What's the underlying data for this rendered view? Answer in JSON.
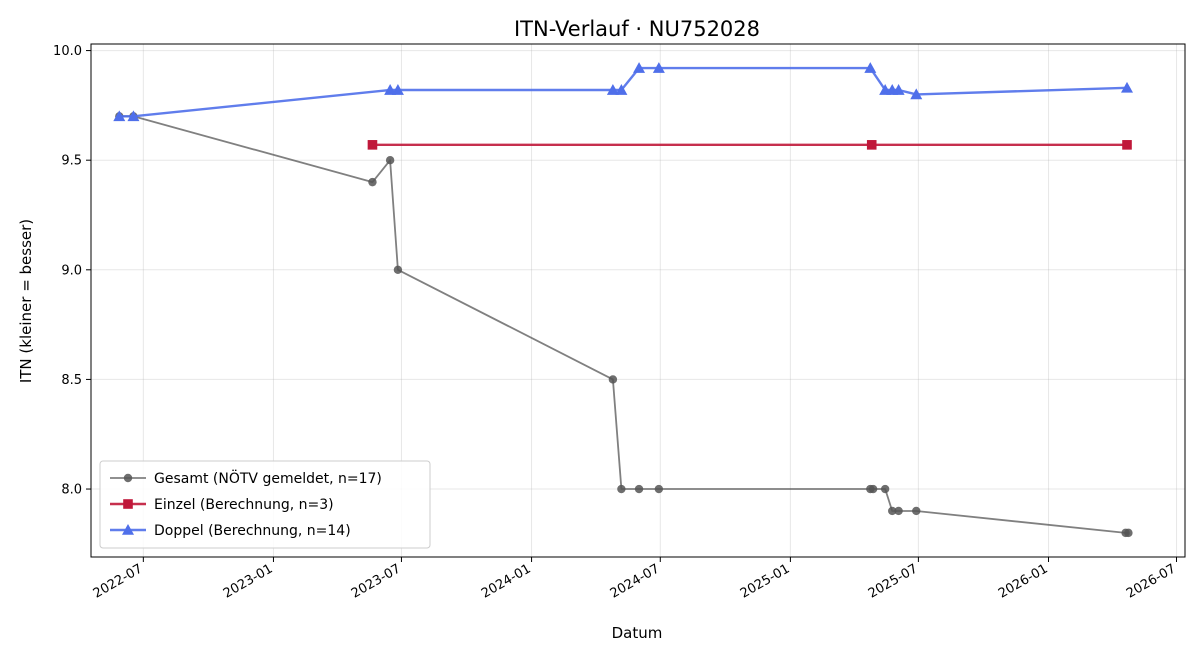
{
  "chart_data": {
    "type": "line",
    "title": "ITN-Verlauf · NU752028",
    "xlabel": "Datum",
    "ylabel": "ITN  (kleiner = besser)",
    "x_range": [
      "2022-04-18",
      "2026-07-13"
    ],
    "ylim": [
      7.69,
      10.03
    ],
    "x_ticks": [
      {
        "date": "2022-07-01",
        "label": "2022-07"
      },
      {
        "date": "2023-01-01",
        "label": "2023-01"
      },
      {
        "date": "2023-07-01",
        "label": "2023-07"
      },
      {
        "date": "2024-01-01",
        "label": "2024-01"
      },
      {
        "date": "2024-07-01",
        "label": "2024-07"
      },
      {
        "date": "2025-01-01",
        "label": "2025-01"
      },
      {
        "date": "2025-07-01",
        "label": "2025-07"
      },
      {
        "date": "2026-01-01",
        "label": "2026-01"
      },
      {
        "date": "2026-07-01",
        "label": "2026-07"
      }
    ],
    "y_ticks": [
      8.0,
      8.5,
      9.0,
      9.5,
      10.0
    ],
    "y_tick_labels": [
      "8.0",
      "8.5",
      "9.0",
      "9.5",
      "10.0"
    ],
    "grid": true,
    "legend_position": "lower-left",
    "series": [
      {
        "name": "Gesamt (NÖTV gemeldet, n=17)",
        "color": "#555555",
        "marker": "circle",
        "points": [
          {
            "x": "2022-05-28",
            "y": 9.7
          },
          {
            "x": "2022-06-17",
            "y": 9.7
          },
          {
            "x": "2023-05-21",
            "y": 9.4
          },
          {
            "x": "2023-06-15",
            "y": 9.5
          },
          {
            "x": "2023-06-26",
            "y": 9.0
          },
          {
            "x": "2024-04-25",
            "y": 8.5
          },
          {
            "x": "2024-05-07",
            "y": 8.0
          },
          {
            "x": "2024-06-01",
            "y": 8.0
          },
          {
            "x": "2024-06-29",
            "y": 8.0
          },
          {
            "x": "2025-04-24",
            "y": 8.0
          },
          {
            "x": "2025-04-28",
            "y": 8.0
          },
          {
            "x": "2025-05-15",
            "y": 8.0
          },
          {
            "x": "2025-05-25",
            "y": 7.9
          },
          {
            "x": "2025-06-03",
            "y": 7.9
          },
          {
            "x": "2025-06-28",
            "y": 7.9
          },
          {
            "x": "2026-04-20",
            "y": 7.8
          },
          {
            "x": "2026-04-24",
            "y": 7.8
          }
        ]
      },
      {
        "name": "Einzel (Berechnung, n=3)",
        "color": "#c0183a",
        "marker": "square",
        "points": [
          {
            "x": "2023-05-21",
            "y": 9.57
          },
          {
            "x": "2025-04-26",
            "y": 9.57
          },
          {
            "x": "2026-04-22",
            "y": 9.57
          }
        ]
      },
      {
        "name": "Doppel (Berechnung, n=14)",
        "color": "#4f6fea",
        "marker": "triangle",
        "points": [
          {
            "x": "2022-05-28",
            "y": 9.7
          },
          {
            "x": "2022-06-17",
            "y": 9.7
          },
          {
            "x": "2023-06-15",
            "y": 9.82
          },
          {
            "x": "2023-06-26",
            "y": 9.82
          },
          {
            "x": "2024-04-25",
            "y": 9.82
          },
          {
            "x": "2024-05-07",
            "y": 9.82
          },
          {
            "x": "2024-06-01",
            "y": 9.92
          },
          {
            "x": "2024-06-29",
            "y": 9.92
          },
          {
            "x": "2025-04-24",
            "y": 9.92
          },
          {
            "x": "2025-05-15",
            "y": 9.82
          },
          {
            "x": "2025-05-25",
            "y": 9.82
          },
          {
            "x": "2025-06-03",
            "y": 9.82
          },
          {
            "x": "2025-06-28",
            "y": 9.8
          },
          {
            "x": "2026-04-22",
            "y": 9.83
          }
        ]
      }
    ]
  }
}
